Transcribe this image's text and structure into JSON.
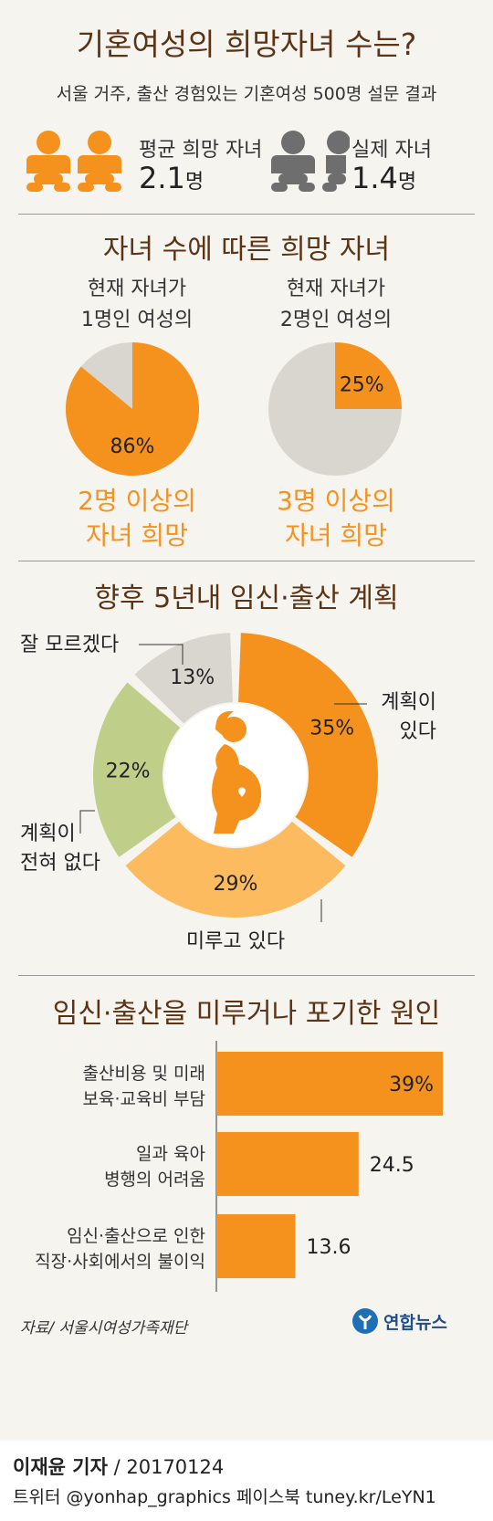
{
  "header": {
    "title": "기혼여성의 희망자녀 수는?",
    "subtitle": "서울 거주, 출산 경험있는 기혼여성 500명 설문 결과"
  },
  "stats": {
    "hope_label": "평균 희망 자녀",
    "hope_value": "2.1",
    "hope_unit": "명",
    "actual_label": "실제 자녀",
    "actual_value": "1.4",
    "actual_unit": "명"
  },
  "section1": {
    "title": "자녀 수에 따른 희망 자녀",
    "left_caption_1": "현재 자녀가",
    "left_caption_2": "1명인 여성의",
    "right_caption_1": "현재 자녀가",
    "right_caption_2": "2명인 여성의",
    "left_result_1": "2명 이상의",
    "left_result_2": "자녀 희망",
    "right_result_1": "3명 이상의",
    "right_result_2": "자녀 희망"
  },
  "section2": {
    "title": "향후 5년내 임신·출산 계획"
  },
  "section3": {
    "title": "임신·출산을 미루거나 포기한 원인"
  },
  "chart_data": [
    {
      "type": "pie",
      "labels": [
        "2명 이상의 자녀 희망"
      ],
      "values": [
        86
      ],
      "value_labels": [
        "86%"
      ],
      "colors": [
        "#f5921e",
        "#d8d6cf"
      ]
    },
    {
      "type": "pie",
      "labels": [
        "3명 이상의 자녀 희망"
      ],
      "values": [
        25
      ],
      "value_labels": [
        "25%"
      ],
      "colors": [
        "#f5921e",
        "#d8d6cf"
      ]
    },
    {
      "type": "pie",
      "title": "향후 5년내 임신·출산 계획",
      "labels": [
        "계획이 있다",
        "미루고 있다",
        "계획이 전혀 없다",
        "잘 모르겠다"
      ],
      "label_lines": [
        [
          "계획이",
          "있다"
        ],
        [
          "미루고 있다"
        ],
        [
          "계획이",
          "전혀 없다"
        ],
        [
          "잘 모르겠다"
        ]
      ],
      "values": [
        35,
        29,
        22,
        13
      ],
      "value_labels": [
        "35%",
        "29%",
        "22%",
        "13%"
      ],
      "colors": [
        "#f5921e",
        "#fdbb5f",
        "#bfcf8a",
        "#d8d6cf"
      ]
    },
    {
      "type": "bar",
      "title": "임신·출산을 미루거나 포기한 원인",
      "categories": [
        [
          "출산비용 및 미래",
          "보육·교육비 부담"
        ],
        [
          "일과 육아",
          "병행의 어려움"
        ],
        [
          "임신·출산으로 인한",
          "직장·사회에서의 불이익"
        ]
      ],
      "values": [
        39,
        24.5,
        13.6
      ],
      "value_labels": [
        "39%",
        "24.5",
        "13.6"
      ],
      "color": "#f5921e"
    }
  ],
  "footer": {
    "source": "자료/ 서울시여성가족재단",
    "brand": "연합뉴스",
    "reporter": "이재윤 기자",
    "date": "/ 20170124",
    "social": "트위터 @yonhap_graphics  페이스북 tuney.kr/LeYN1"
  },
  "colors": {
    "accent": "#f5921e",
    "title_brown": "#5b3417",
    "grey_icon": "#6e6e6e",
    "background": "#f6f4ef"
  }
}
